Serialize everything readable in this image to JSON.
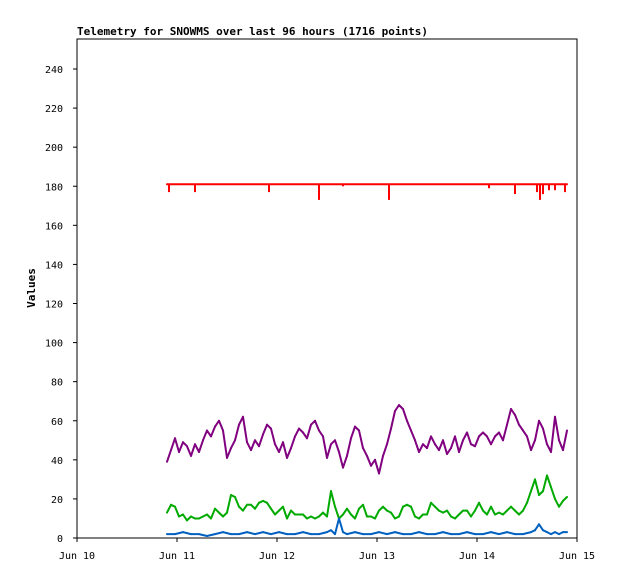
{
  "chart_data": {
    "type": "line",
    "title": "Telemetry for SNOWMS over last 96 hours (1716 points)",
    "xlabel": "",
    "ylabel": "Values",
    "x_tick_labels": [
      "Jun 10",
      "Jun 11",
      "Jun 12",
      "Jun 13",
      "Jun 14",
      "Jun 15"
    ],
    "x_ticks": [
      0,
      1,
      2,
      3,
      4,
      5
    ],
    "xlim": [
      0,
      5
    ],
    "ylim": [
      0,
      240
    ],
    "y_ticks": [
      0,
      20,
      40,
      60,
      80,
      100,
      120,
      140,
      160,
      180,
      200,
      220,
      240
    ],
    "grid": false,
    "x_units": "days since Jun 10",
    "series": [
      {
        "color": "#ff0000",
        "base": 181,
        "x": [
          0.9,
          4.9
        ],
        "y": [
          181,
          181
        ],
        "dips": [
          {
            "x": 0.92,
            "y": 177
          },
          {
            "x": 1.18,
            "y": 177
          },
          {
            "x": 1.92,
            "y": 177
          },
          {
            "x": 2.42,
            "y": 173
          },
          {
            "x": 2.66,
            "y": 180
          },
          {
            "x": 3.12,
            "y": 173
          },
          {
            "x": 4.12,
            "y": 179
          },
          {
            "x": 4.38,
            "y": 176
          },
          {
            "x": 4.6,
            "y": 177
          },
          {
            "x": 4.63,
            "y": 173
          },
          {
            "x": 4.66,
            "y": 176
          },
          {
            "x": 4.72,
            "y": 178
          },
          {
            "x": 4.78,
            "y": 178
          },
          {
            "x": 4.88,
            "y": 177
          }
        ]
      },
      {
        "color": "#800080",
        "x": [
          0.9,
          0.94,
          0.98,
          1.02,
          1.06,
          1.1,
          1.14,
          1.18,
          1.22,
          1.26,
          1.3,
          1.34,
          1.38,
          1.42,
          1.46,
          1.5,
          1.54,
          1.58,
          1.62,
          1.66,
          1.7,
          1.74,
          1.78,
          1.82,
          1.86,
          1.9,
          1.94,
          1.98,
          2.02,
          2.06,
          2.1,
          2.14,
          2.18,
          2.22,
          2.26,
          2.3,
          2.34,
          2.38,
          2.42,
          2.46,
          2.5,
          2.54,
          2.58,
          2.62,
          2.66,
          2.7,
          2.74,
          2.78,
          2.82,
          2.86,
          2.9,
          2.94,
          2.98,
          3.02,
          3.06,
          3.1,
          3.14,
          3.18,
          3.22,
          3.26,
          3.3,
          3.34,
          3.38,
          3.42,
          3.46,
          3.5,
          3.54,
          3.58,
          3.62,
          3.66,
          3.7,
          3.74,
          3.78,
          3.82,
          3.86,
          3.9,
          3.94,
          3.98,
          4.02,
          4.06,
          4.1,
          4.14,
          4.18,
          4.22,
          4.26,
          4.3,
          4.34,
          4.38,
          4.42,
          4.46,
          4.5,
          4.54,
          4.58,
          4.62,
          4.66,
          4.7,
          4.74,
          4.78,
          4.82,
          4.86,
          4.9
        ],
        "y": [
          39,
          45,
          51,
          44,
          49,
          47,
          42,
          48,
          44,
          50,
          55,
          52,
          57,
          60,
          55,
          41,
          46,
          50,
          58,
          62,
          49,
          45,
          50,
          47,
          53,
          58,
          56,
          48,
          44,
          49,
          41,
          46,
          52,
          56,
          54,
          51,
          58,
          60,
          55,
          52,
          41,
          48,
          50,
          44,
          36,
          42,
          51,
          57,
          55,
          46,
          42,
          37,
          40,
          33,
          42,
          48,
          56,
          65,
          68,
          66,
          60,
          55,
          50,
          44,
          48,
          46,
          52,
          48,
          45,
          50,
          43,
          46,
          52,
          44,
          50,
          54,
          48,
          47,
          52,
          54,
          52,
          48,
          52,
          54,
          50,
          58,
          66,
          63,
          58,
          55,
          52,
          45,
          50,
          60,
          56,
          48,
          44,
          62,
          50,
          45,
          55
        ]
      },
      {
        "color": "#00aa00",
        "x": [
          0.9,
          0.94,
          0.98,
          1.02,
          1.06,
          1.1,
          1.14,
          1.18,
          1.22,
          1.26,
          1.3,
          1.34,
          1.38,
          1.42,
          1.46,
          1.5,
          1.54,
          1.58,
          1.62,
          1.66,
          1.7,
          1.74,
          1.78,
          1.82,
          1.86,
          1.9,
          1.94,
          1.98,
          2.02,
          2.06,
          2.1,
          2.14,
          2.18,
          2.22,
          2.26,
          2.3,
          2.34,
          2.38,
          2.42,
          2.46,
          2.5,
          2.54,
          2.58,
          2.62,
          2.66,
          2.7,
          2.74,
          2.78,
          2.82,
          2.86,
          2.9,
          2.94,
          2.98,
          3.02,
          3.06,
          3.1,
          3.14,
          3.18,
          3.22,
          3.26,
          3.3,
          3.34,
          3.38,
          3.42,
          3.46,
          3.5,
          3.54,
          3.58,
          3.62,
          3.66,
          3.7,
          3.74,
          3.78,
          3.82,
          3.86,
          3.9,
          3.94,
          3.98,
          4.02,
          4.06,
          4.1,
          4.14,
          4.18,
          4.22,
          4.26,
          4.3,
          4.34,
          4.38,
          4.42,
          4.46,
          4.5,
          4.54,
          4.58,
          4.62,
          4.66,
          4.7,
          4.74,
          4.78,
          4.82,
          4.86,
          4.9
        ],
        "y": [
          13,
          17,
          16,
          11,
          12,
          9,
          11,
          10,
          10,
          11,
          12,
          10,
          15,
          13,
          11,
          13,
          22,
          21,
          16,
          14,
          17,
          17,
          15,
          18,
          19,
          18,
          15,
          12,
          14,
          16,
          10,
          14,
          12,
          12,
          12,
          10,
          11,
          10,
          11,
          13,
          11,
          24,
          16,
          10,
          12,
          15,
          12,
          10,
          15,
          17,
          11,
          11,
          10,
          14,
          16,
          14,
          13,
          10,
          11,
          16,
          17,
          16,
          11,
          10,
          12,
          12,
          18,
          16,
          14,
          13,
          14,
          11,
          10,
          12,
          14,
          14,
          11,
          14,
          18,
          14,
          12,
          16,
          12,
          13,
          12,
          14,
          16,
          14,
          12,
          14,
          18,
          24,
          30,
          22,
          24,
          32,
          26,
          20,
          16,
          19,
          21
        ]
      },
      {
        "color": "#0060c0",
        "x": [
          0.9,
          0.98,
          1.06,
          1.14,
          1.22,
          1.3,
          1.38,
          1.46,
          1.54,
          1.62,
          1.7,
          1.78,
          1.86,
          1.94,
          2.02,
          2.1,
          2.18,
          2.26,
          2.34,
          2.42,
          2.5,
          2.54,
          2.58,
          2.62,
          2.66,
          2.7,
          2.78,
          2.86,
          2.94,
          3.02,
          3.1,
          3.18,
          3.26,
          3.34,
          3.42,
          3.5,
          3.58,
          3.66,
          3.74,
          3.82,
          3.9,
          3.98,
          4.06,
          4.14,
          4.22,
          4.3,
          4.38,
          4.46,
          4.54,
          4.58,
          4.62,
          4.66,
          4.7,
          4.74,
          4.78,
          4.82,
          4.86,
          4.9
        ],
        "y": [
          2,
          2,
          3,
          2,
          2,
          1,
          2,
          3,
          2,
          2,
          3,
          2,
          3,
          2,
          3,
          2,
          2,
          3,
          2,
          2,
          3,
          4,
          2,
          10,
          3,
          2,
          3,
          2,
          2,
          3,
          2,
          3,
          2,
          2,
          3,
          2,
          2,
          3,
          2,
          2,
          3,
          2,
          2,
          3,
          2,
          3,
          2,
          2,
          3,
          4,
          7,
          4,
          3,
          2,
          3,
          2,
          3,
          3
        ]
      }
    ]
  }
}
